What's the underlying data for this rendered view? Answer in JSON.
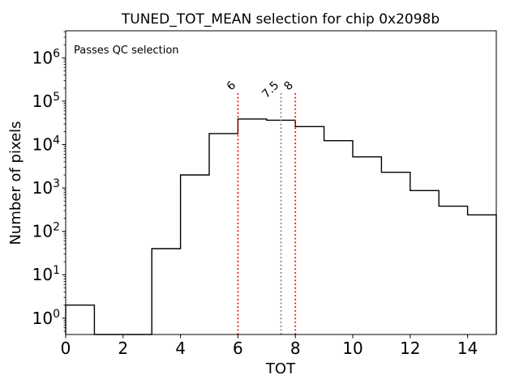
{
  "title": "TUNED_TOT_MEAN selection for chip 0x2098b",
  "annotation": {
    "text": "Passes QC selection",
    "color": "#008000"
  },
  "chart_data": {
    "type": "bar",
    "subtype": "step-histogram",
    "title": "TUNED_TOT_MEAN selection for chip 0x2098b",
    "xlabel": "TOT",
    "ylabel": "Number of pixels",
    "yscale": "log",
    "xlim": [
      0,
      15
    ],
    "ylim": [
      0.42,
      4200000
    ],
    "grid": false,
    "legend": null,
    "bin_edges": [
      0,
      1,
      2,
      3,
      4,
      5,
      6,
      7,
      8,
      9,
      10,
      11,
      12,
      13,
      14,
      15
    ],
    "counts": [
      2,
      0,
      0,
      40,
      2000,
      18000,
      39000,
      36500,
      26000,
      12300,
      5200,
      2300,
      870,
      380,
      240
    ],
    "xticks": [
      0,
      2,
      4,
      6,
      8,
      10,
      12,
      14
    ],
    "ytick_exponents": [
      0,
      1,
      2,
      3,
      4,
      5,
      6
    ],
    "line_color": "#000000",
    "vlines": [
      {
        "x": 6,
        "label": "6",
        "color": "#ff0000"
      },
      {
        "x": 7.5,
        "label": "7.5",
        "color": "#808080"
      },
      {
        "x": 8,
        "label": "8",
        "color": "#ff0000"
      }
    ],
    "vline_top_fraction": 0.8
  }
}
